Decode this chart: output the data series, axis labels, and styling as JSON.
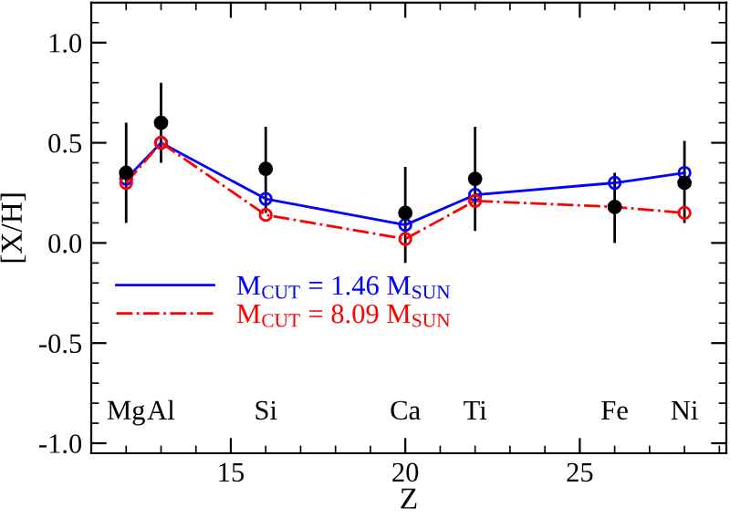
{
  "chart_data": {
    "type": "line",
    "xlabel": "Z",
    "ylabel": "[X/H]",
    "xlim": [
      11,
      29.2
    ],
    "ylim": [
      -1.05,
      1.2
    ],
    "xticks": [
      15,
      20,
      25
    ],
    "yticks": [
      {
        "value": -1,
        "label": "-1.0"
      },
      {
        "value": -0.5,
        "label": "-0.5"
      },
      {
        "value": 0,
        "label": "0.0"
      },
      {
        "value": 0.5,
        "label": "0.5"
      },
      {
        "value": 1,
        "label": "1.0"
      }
    ],
    "legend": "bottom left",
    "grid": false,
    "series": [
      {
        "type": "scatter",
        "color": "#000000",
        "marker": "circle",
        "x": [
          12,
          13,
          16,
          20,
          22,
          26,
          28
        ],
        "values": [
          0.35,
          0.6,
          0.37,
          0.15,
          0.32,
          0.18,
          0.3
        ],
        "errors": [
          [
            0.1,
            0.6
          ],
          [
            0.4,
            0.8
          ],
          [
            0.15,
            0.58
          ],
          [
            -0.1,
            0.38
          ],
          [
            0.06,
            0.58
          ],
          [
            0.0,
            0.35
          ],
          [
            0.1,
            0.51
          ]
        ]
      },
      {
        "name": "M$_{CUT}$ = 1.46 M$_{SUN}$",
        "color": "#0000ff",
        "marker": "circle",
        "line_style": "solid",
        "x": [
          12,
          13,
          16,
          20,
          22,
          26,
          28
        ],
        "values": [
          0.32,
          0.5,
          0.22,
          0.09,
          0.24,
          0.3,
          0.35
        ]
      },
      {
        "name": "M$_{CUT}$ = 8.09 M$_{SUN}$",
        "color": "#ff0000",
        "marker": "circle",
        "line_style": "dashdot",
        "x": [
          12,
          13,
          16,
          20,
          22,
          26,
          28
        ],
        "values": [
          0.3,
          0.5,
          0.14,
          0.02,
          0.21,
          0.18,
          0.15
        ]
      }
    ],
    "annotations": [
      "Mg",
      "Al",
      "Si",
      "Ca",
      "Ti",
      "Fe",
      "Ni"
    ]
  }
}
